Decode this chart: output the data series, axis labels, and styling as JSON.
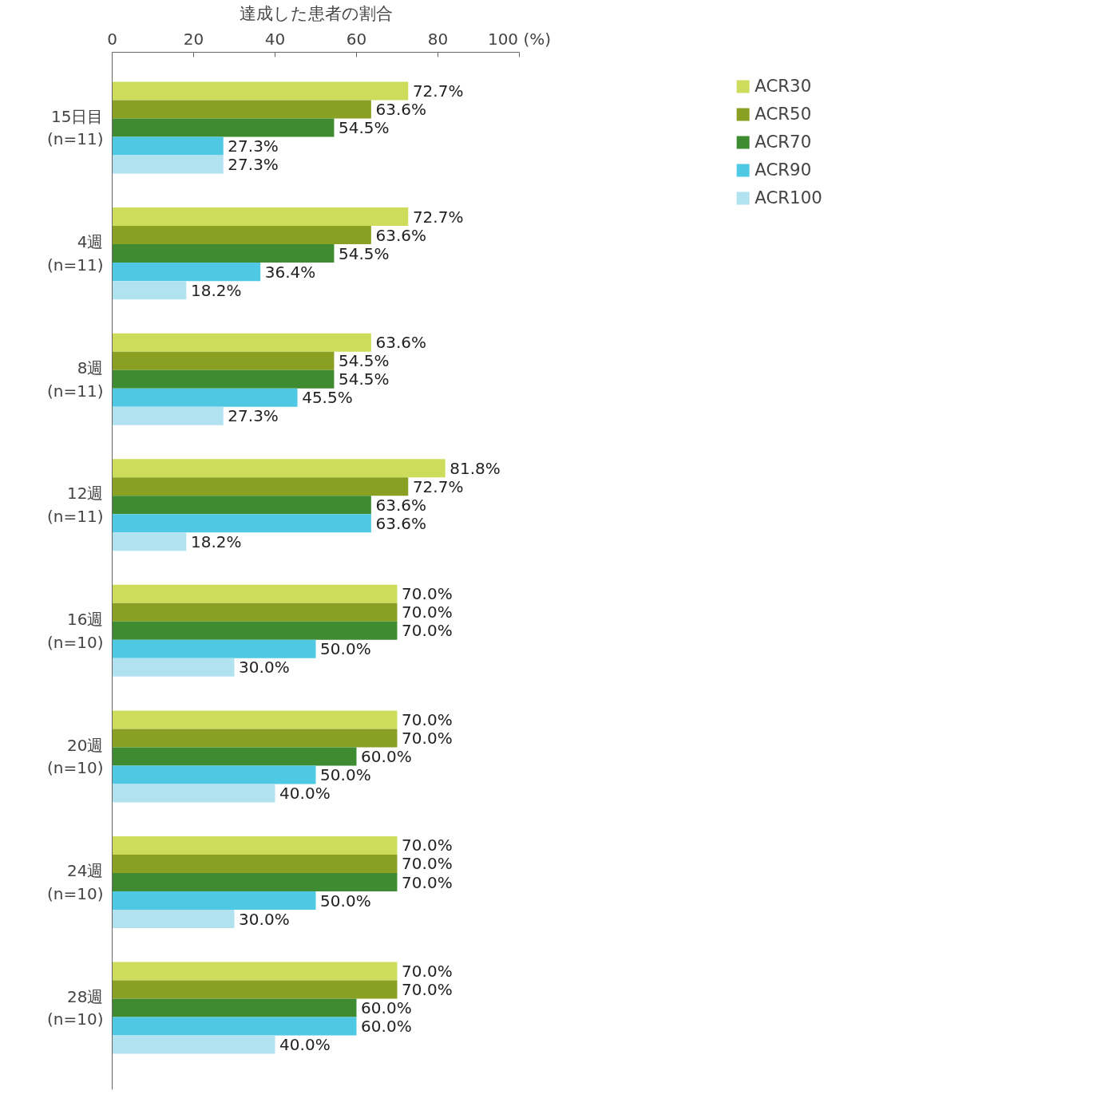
{
  "chart_data": {
    "type": "bar",
    "orientation": "horizontal",
    "xlabel": "達成した患者の割合",
    "categories": [
      "15日目\n(n=11)",
      "4週\n(n=11)",
      "8週\n(n=11)",
      "12週\n(n=11)",
      "16週\n(n=10)",
      "20週\n(n=10)",
      "24週\n(n=10)",
      "28週\n(n=10)"
    ],
    "series": [
      {
        "name": "ACR30",
        "color": "#cddc5a",
        "values": [
          72.7,
          72.7,
          63.6,
          81.8,
          70.0,
          70.0,
          70.0,
          70.0
        ],
        "value_labels": [
          "72.7%",
          "72.7%",
          "63.6%",
          "81.8%",
          "70.0%",
          "70.0%",
          "70.0%",
          "70.0%"
        ]
      },
      {
        "name": "ACR50",
        "color": "#8aa023",
        "values": [
          63.6,
          63.6,
          54.5,
          72.7,
          70.0,
          70.0,
          70.0,
          70.0
        ],
        "value_labels": [
          "63.6%",
          "63.6%",
          "54.5%",
          "72.7%",
          "70.0%",
          "70.0%",
          "70.0%",
          "70.0%"
        ]
      },
      {
        "name": "ACR70",
        "color": "#3f8b32",
        "values": [
          54.5,
          54.5,
          54.5,
          63.6,
          70.0,
          60.0,
          70.0,
          60.0
        ],
        "value_labels": [
          "54.5%",
          "54.5%",
          "54.5%",
          "63.6%",
          "70.0%",
          "60.0%",
          "70.0%",
          "60.0%"
        ]
      },
      {
        "name": "ACR90",
        "color": "#4fc8e4",
        "values": [
          27.3,
          36.4,
          45.5,
          63.6,
          50.0,
          50.0,
          50.0,
          60.0
        ],
        "value_labels": [
          "27.3%",
          "36.4%",
          "45.5%",
          "63.6%",
          "50.0%",
          "50.0%",
          "50.0%",
          "60.0%"
        ]
      },
      {
        "name": "ACR100",
        "color": "#b0e2f0",
        "values": [
          27.3,
          18.2,
          27.3,
          18.2,
          30.0,
          40.0,
          30.0,
          40.0
        ],
        "value_labels": [
          "27.3%",
          "18.2%",
          "27.3%",
          "18.2%",
          "30.0%",
          "40.0%",
          "30.0%",
          "40.0%"
        ]
      }
    ],
    "xlim": [
      0,
      100
    ],
    "xticks": [
      0,
      20,
      40,
      60,
      80,
      {
        "value": 100,
        "label": "100 (%)"
      }
    ],
    "grid": false,
    "legend": "top right"
  }
}
